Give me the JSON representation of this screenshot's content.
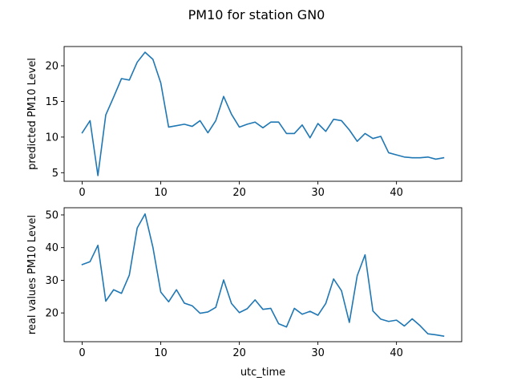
{
  "chart_data": {
    "type": "line",
    "title": "PM10 for station GN0",
    "xlabel": "utc_time",
    "color": "#1f77b4",
    "x": [
      0,
      1,
      2,
      3,
      4,
      5,
      6,
      7,
      8,
      9,
      10,
      11,
      12,
      13,
      14,
      15,
      16,
      17,
      18,
      19,
      20,
      21,
      22,
      23,
      24,
      25,
      26,
      27,
      28,
      29,
      30,
      31,
      32,
      33,
      34,
      35,
      36,
      37,
      38,
      39,
      40,
      41,
      42,
      43,
      44,
      45,
      46
    ],
    "xlim": [
      -2.3,
      48.3
    ],
    "xticks": [
      0,
      10,
      20,
      30,
      40
    ],
    "subplots": [
      {
        "ylabel": "predicted PM10 Level",
        "ylim": [
          3.8,
          22.7
        ],
        "yticks": [
          5,
          10,
          15,
          20
        ],
        "series": [
          {
            "values": [
              10.6,
              12.3,
              4.6,
              13.1,
              15.6,
              18.2,
              18.0,
              20.5,
              21.9,
              20.9,
              17.6,
              11.4,
              11.6,
              11.8,
              11.5,
              12.3,
              10.6,
              12.3,
              15.7,
              13.2,
              11.4,
              11.8,
              12.1,
              11.3,
              12.1,
              12.1,
              10.5,
              10.5,
              11.7,
              9.9,
              11.9,
              10.8,
              12.5,
              12.3,
              11.0,
              9.4,
              10.5,
              9.8,
              10.1,
              7.8,
              7.5,
              7.2,
              7.1,
              7.1,
              7.2,
              6.9,
              7.1
            ]
          }
        ]
      },
      {
        "ylabel": "real values PM10 Level",
        "ylim": [
          11.2,
          52.2
        ],
        "yticks": [
          20,
          30,
          40,
          50
        ],
        "series": [
          {
            "values": [
              34.8,
              35.7,
              40.7,
              23.6,
              27.1,
              26.0,
              31.6,
              46.0,
              50.3,
              40.1,
              26.4,
              23.4,
              27.1,
              23.0,
              22.2,
              19.9,
              20.3,
              21.7,
              30.1,
              22.9,
              20.1,
              21.3,
              24.0,
              21.1,
              21.4,
              16.7,
              15.7,
              21.4,
              19.6,
              20.5,
              19.3,
              22.9,
              30.4,
              26.8,
              17.1,
              31.4,
              37.8,
              20.6,
              18.1,
              17.4,
              17.8,
              16.0,
              18.2,
              16.1,
              13.6,
              13.3,
              12.9
            ]
          }
        ]
      }
    ]
  }
}
